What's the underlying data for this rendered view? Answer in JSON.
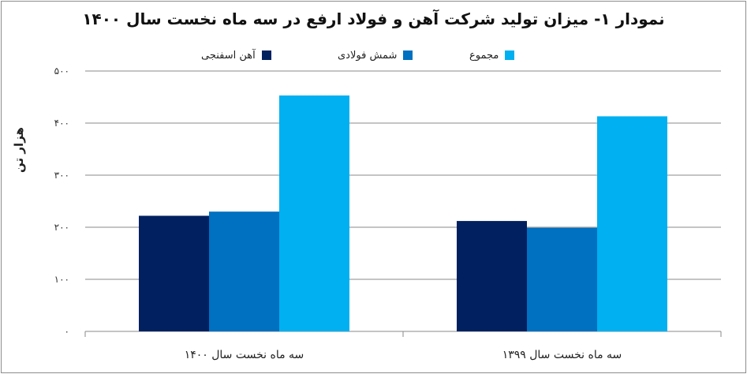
{
  "chart_data": {
    "type": "bar",
    "title": "نمودار ۱- میزان تولید شرکت آهن و فولاد ارفع در سه ماه نخست سال ۱۴۰۰",
    "ylabel": "هزار تن",
    "xlabel": "",
    "ylim": [
      0,
      500
    ],
    "yticks": [
      0,
      100,
      200,
      300,
      400,
      500
    ],
    "ytick_labels": [
      "۰",
      "۱۰۰",
      "۲۰۰",
      "۳۰۰",
      "۴۰۰",
      "۵۰۰"
    ],
    "grid": true,
    "legend_position": "top",
    "categories": [
      "سه ماه نخست سال ۱۴۰۰",
      "سه ماه نخست سال ۱۳۹۹"
    ],
    "series": [
      {
        "name": "آهن اسفنجی",
        "color": "#002060",
        "values": [
          222,
          212
        ]
      },
      {
        "name": "شمش فولادی",
        "color": "#0070C0",
        "values": [
          230,
          199
        ]
      },
      {
        "name": "مجموع",
        "color": "#00B0F0",
        "values": [
          453,
          413
        ]
      }
    ]
  }
}
